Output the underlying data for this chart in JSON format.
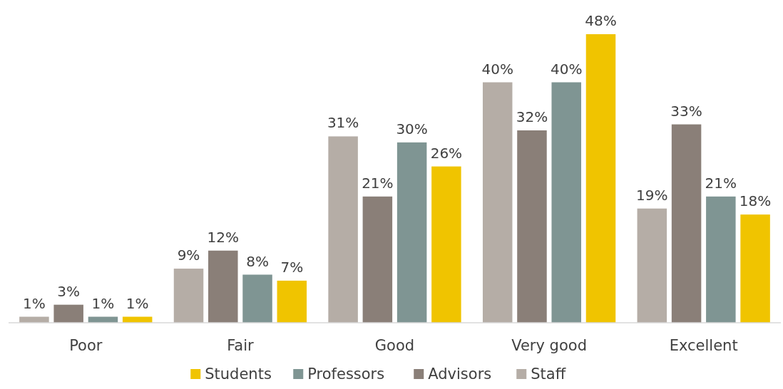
{
  "chart_data": {
    "type": "bar",
    "categories": [
      "Poor",
      "Fair",
      "Good",
      "Very good",
      "Excellent"
    ],
    "legend": "bottom",
    "series": [
      {
        "name": "Staff",
        "color": "#b5ada6",
        "values": [
          1,
          9,
          31,
          40,
          19
        ],
        "value_labels": [
          "1%",
          "9%",
          "31%",
          "40%",
          "19%"
        ]
      },
      {
        "name": "Advisors",
        "color": "#8a7f78",
        "values": [
          3,
          12,
          21,
          32,
          33
        ],
        "value_labels": [
          "3%",
          "12%",
          "21%",
          "32%",
          "33%"
        ]
      },
      {
        "name": "Professors",
        "color": "#7f9593",
        "values": [
          1,
          8,
          30,
          40,
          21
        ],
        "value_labels": [
          "1%",
          "8%",
          "30%",
          "40%",
          "21%"
        ]
      },
      {
        "name": "Students",
        "color": "#f0c400",
        "values": [
          1,
          7,
          26,
          48,
          18
        ],
        "value_labels": [
          "1%",
          "7%",
          "26%",
          "48%",
          "18%"
        ]
      }
    ]
  }
}
